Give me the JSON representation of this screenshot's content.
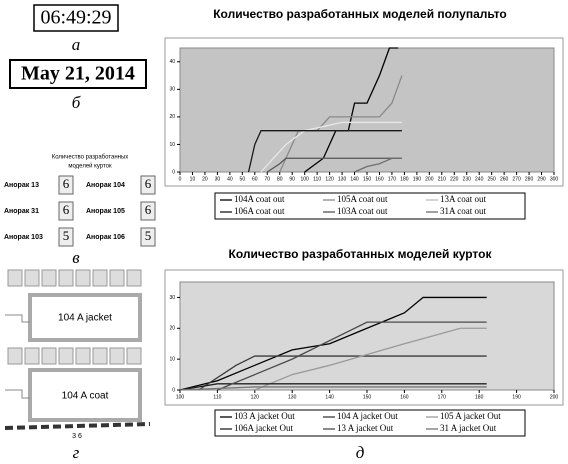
{
  "panels": {
    "a": {
      "time": "06:49:29",
      "caption": "а"
    },
    "b": {
      "date": "May 21, 2014",
      "caption": "б"
    },
    "v": {
      "title_line1": "Количество разработанных",
      "title_line2": "моделей курток",
      "caption": "в",
      "items": [
        {
          "label": "Анорак 13",
          "value": 6
        },
        {
          "label": "Анорак 104",
          "value": 6
        },
        {
          "label": "Анорак 31",
          "value": 6
        },
        {
          "label": "Анорак 105",
          "value": 6
        },
        {
          "label": "Анорак 103",
          "value": 5
        },
        {
          "label": "Анорак 106",
          "value": 5
        }
      ]
    },
    "g": {
      "label_top": "104 A jacket",
      "label_bottom": "104 A coat",
      "counter": "3 6",
      "caption": "г"
    },
    "d": {
      "caption": "д"
    }
  },
  "chart_data": [
    {
      "type": "line",
      "title": "Количество разработанных моделей полупальто",
      "xlim": [
        0,
        300
      ],
      "ylim": [
        0,
        45
      ],
      "xticks": [
        0,
        10,
        20,
        30,
        40,
        50,
        60,
        70,
        80,
        90,
        100,
        110,
        120,
        130,
        140,
        150,
        160,
        170,
        180,
        190,
        200,
        210,
        220,
        230,
        240,
        250,
        260,
        270,
        280,
        290,
        300
      ],
      "yticks": [
        0,
        10,
        20,
        30,
        40
      ],
      "grid": false,
      "background": "#c4c4c4",
      "series": [
        {
          "name": "104A coat out",
          "color": "#000000",
          "x": [
            100,
            115,
            125,
            135,
            140,
            150,
            160,
            168,
            175
          ],
          "values": [
            0,
            5,
            15,
            15,
            25,
            25,
            35,
            45,
            45
          ]
        },
        {
          "name": "105A coat out",
          "color": "#8a8a8a",
          "x": [
            80,
            90,
            95,
            110,
            120,
            140,
            160,
            170,
            178
          ],
          "values": [
            0,
            10,
            15,
            15,
            20,
            20,
            20,
            25,
            35
          ]
        },
        {
          "name": "13A coat out",
          "color": "#e8e8e8",
          "x": [
            65,
            75,
            85,
            100,
            130,
            178
          ],
          "values": [
            0,
            5,
            10,
            15,
            18,
            18
          ]
        },
        {
          "name": "106A coat out",
          "color": "#1a1a1a",
          "x": [
            55,
            60,
            65,
            70,
            100,
            178
          ],
          "values": [
            0,
            10,
            15,
            15,
            15,
            15
          ]
        },
        {
          "name": "103A coat out",
          "color": "#555555",
          "x": [
            70,
            80,
            85,
            178
          ],
          "values": [
            0,
            3,
            5,
            5
          ]
        },
        {
          "name": "31A coat out",
          "color": "#6e6e6e",
          "x": [
            140,
            150,
            160,
            170,
            178
          ],
          "values": [
            0,
            2,
            3,
            5,
            5
          ]
        }
      ]
    },
    {
      "type": "line",
      "title": "Количество разработанных моделей курток",
      "xlim": [
        100,
        200
      ],
      "ylim": [
        0,
        35
      ],
      "xticks": [
        100,
        110,
        120,
        130,
        140,
        150,
        160,
        170,
        180,
        190,
        200
      ],
      "yticks": [
        0,
        10,
        20,
        30
      ],
      "grid": false,
      "background": "#d8d8d8",
      "series": [
        {
          "name": "103 A jacket Out",
          "color": "#000000",
          "x": [
            100,
            110,
            120,
            130,
            140,
            150,
            160,
            165,
            182
          ],
          "values": [
            0,
            3,
            8,
            13,
            15,
            20,
            25,
            30,
            30
          ]
        },
        {
          "name": "104 A jacket Out",
          "color": "#3a3a3a",
          "x": [
            105,
            115,
            120,
            140,
            182
          ],
          "values": [
            0,
            8,
            11,
            11,
            11
          ]
        },
        {
          "name": "105 A jacket Out",
          "color": "#9a9a9a",
          "x": [
            120,
            130,
            140,
            160,
            175,
            182
          ],
          "values": [
            0,
            5,
            8,
            15,
            20,
            20
          ]
        },
        {
          "name": "106A jacket Out",
          "color": "#222222",
          "x": [
            100,
            110,
            140,
            182
          ],
          "values": [
            0,
            2,
            2,
            2
          ]
        },
        {
          "name": "13 A jacket Out",
          "color": "#4a4a4a",
          "x": [
            110,
            120,
            130,
            150,
            182
          ],
          "values": [
            0,
            5,
            10,
            22,
            22
          ]
        },
        {
          "name": "31 A jacket Out",
          "color": "#777777",
          "x": [
            100,
            120,
            150,
            182
          ],
          "values": [
            0,
            1,
            1,
            1
          ]
        }
      ]
    }
  ]
}
